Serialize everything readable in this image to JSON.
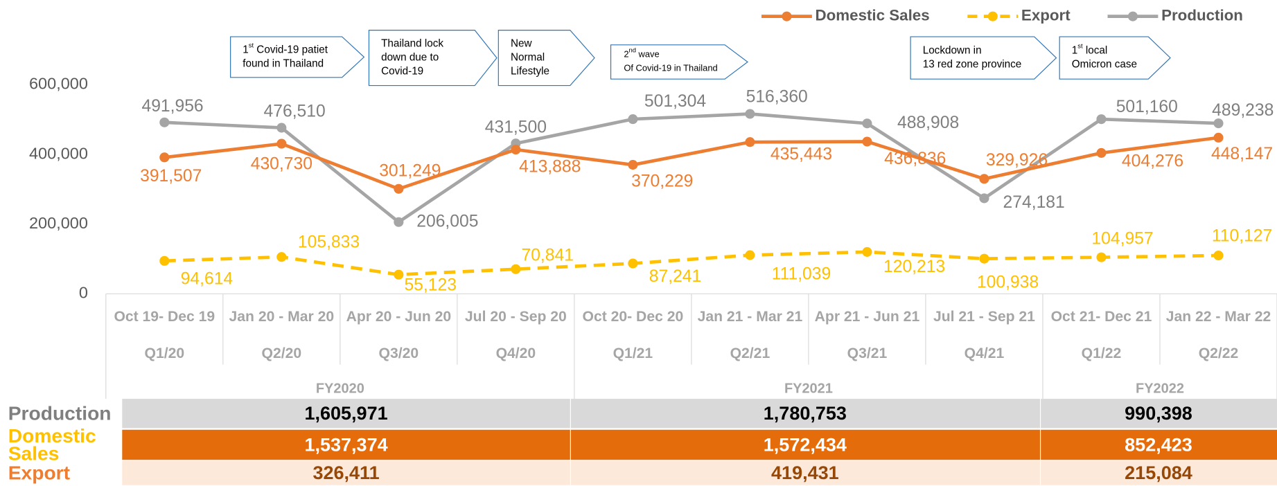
{
  "chart_data": {
    "type": "line",
    "categories": [
      "Oct 19- Dec 19",
      "Jan 20 - Mar 20",
      "Apr 20 - Jun 20",
      "Jul 20 - Sep 20",
      "Oct 20- Dec 20",
      "Jan 21 - Mar 21",
      "Apr 21 - Jun 21",
      "Jul 21 - Sep 21",
      "Oct 21- Dec 21",
      "Jan 22 - Mar 22"
    ],
    "quarters": [
      "Q1/20",
      "Q2/20",
      "Q3/20",
      "Q4/20",
      "Q1/21",
      "Q2/21",
      "Q3/21",
      "Q4/21",
      "Q1/22",
      "Q2/22"
    ],
    "fiscal_years": [
      {
        "label": "FY2020",
        "span": 4
      },
      {
        "label": "FY2021",
        "span": 4
      },
      {
        "label": "FY2022",
        "span": 2
      }
    ],
    "ylim": [
      0,
      600000
    ],
    "yticks": [
      0,
      {
        "value": 200000,
        "label": "200,000"
      },
      {
        "value": 400000,
        "label": "400,000"
      },
      {
        "value": 600000,
        "label": "600,000"
      }
    ],
    "series": [
      {
        "name": "Domestic Sales",
        "color": "#ed7d31",
        "label_color": "#ed7d31",
        "dashed": false,
        "values": [
          391507,
          430730,
          301249,
          413888,
          370229,
          435443,
          436836,
          329926,
          404276,
          448147
        ],
        "value_labels": [
          "391,507",
          "430,730",
          "301,249",
          "413,888",
          "370,229",
          "435,443",
          "436,836",
          "329,926",
          "404,276",
          "448,147"
        ]
      },
      {
        "name": "Export",
        "color": "#ffc000",
        "label_color": "#ffc000",
        "dashed": true,
        "values": [
          94614,
          105833,
          55123,
          70841,
          87241,
          111039,
          120213,
          100938,
          104957,
          110127
        ],
        "value_labels": [
          "94,614",
          "105,833",
          "55,123",
          "70,841",
          "87,241",
          "111,039",
          "120,213",
          "100,938",
          "104,957",
          "110,127"
        ]
      },
      {
        "name": "Production",
        "color": "#a5a5a5",
        "label_color": "#7f7f7f",
        "dashed": false,
        "values": [
          491956,
          476510,
          206005,
          431500,
          501304,
          516360,
          488908,
          274181,
          501160,
          489238
        ],
        "value_labels": [
          "491,956",
          "476,510",
          "206,005",
          "431,500",
          "501,304",
          "516,360",
          "488,908",
          "274,181",
          "501,160",
          "489,238"
        ]
      }
    ],
    "annotations": [
      {
        "lines": [
          [
            {
              "text": "1"
            },
            {
              "text": "st",
              "sup": true
            },
            {
              "text": " Covid-19 patiet"
            }
          ],
          [
            {
              "text": "found in Thailand"
            }
          ]
        ]
      },
      {
        "lines": [
          [
            {
              "text": "Thailand lock"
            }
          ],
          [
            {
              "text": "down due to"
            }
          ],
          [
            {
              "text": "Covid-19"
            }
          ]
        ]
      },
      {
        "lines": [
          [
            {
              "text": "New"
            }
          ],
          [
            {
              "text": "Normal"
            }
          ],
          [
            {
              "text": "Lifestyle"
            }
          ]
        ]
      },
      {
        "lines": [
          [
            {
              "text": "2"
            },
            {
              "text": "nd",
              "sup": true
            },
            {
              "text": " wave"
            }
          ],
          [
            {
              "text": "Of Covid-19 in Thailand"
            }
          ]
        ]
      },
      {
        "lines": [
          [
            {
              "text": "Lockdown in"
            }
          ],
          [
            {
              "text": "13 red zone province"
            }
          ]
        ]
      },
      {
        "lines": [
          [
            {
              "text": "1"
            },
            {
              "text": "st",
              "sup": true
            },
            {
              "text": " local"
            }
          ],
          [
            {
              "text": "Omicron case"
            }
          ]
        ]
      }
    ],
    "table": {
      "rows": [
        {
          "label_lines": [
            "Production"
          ],
          "label_color": "#7f7f7f",
          "fill": "#d9d9d9",
          "text_color": "#000000",
          "cells": [
            "1,605,971",
            "1,780,753",
            "990,398"
          ]
        },
        {
          "label_lines": [
            "Domestic",
            "Sales"
          ],
          "label_color": "#ffc000",
          "fill": "#e46c0a",
          "text_color": "#ffffff",
          "cells": [
            "1,537,374",
            "1,572,434",
            "852,423"
          ]
        },
        {
          "label_lines": [
            "Export"
          ],
          "label_color": "#ed7d31",
          "fill": "#fde9d9",
          "text_color": "#974706",
          "cells": [
            "326,411",
            "419,431",
            "215,084"
          ]
        }
      ]
    }
  }
}
